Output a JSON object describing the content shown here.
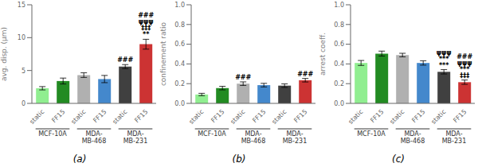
{
  "chart_data": [
    {
      "type": "bar",
      "title": "(a)",
      "ylabel": "avg. disp. (μm)",
      "categories": [
        "static",
        "FF15",
        "static",
        "FF15",
        "static",
        "FF15"
      ],
      "groups": [
        "MCF-10A",
        "MDA-\nMB-468",
        "MDA-\nMB-231"
      ],
      "values": [
        2.3,
        3.4,
        4.3,
        3.7,
        5.6,
        9.0
      ],
      "errors": [
        0.25,
        0.45,
        0.35,
        0.55,
        0.3,
        0.75
      ],
      "colors": [
        "#90ee90",
        "#228B22",
        "#b0b0b0",
        "#4488cc",
        "#404040",
        "#cc3333"
      ],
      "ylim": [
        0,
        15
      ],
      "yticks": [
        0,
        5,
        10,
        15
      ],
      "annotations": [
        {
          "bar": 4,
          "text": "###"
        },
        {
          "bar": 5,
          "text": "###\nψψψ\n‡‡‡\n**"
        }
      ]
    },
    {
      "type": "bar",
      "title": "(b)",
      "ylabel": "confinement ratio",
      "categories": [
        "static",
        "FF15",
        "static",
        "FF15",
        "static",
        "FF15"
      ],
      "groups": [
        "MCF-10A",
        "MDA-\nMB-468",
        "MDA-\nMB-231"
      ],
      "values": [
        0.09,
        0.155,
        0.2,
        0.185,
        0.18,
        0.235
      ],
      "errors": [
        0.012,
        0.018,
        0.018,
        0.018,
        0.018,
        0.018
      ],
      "colors": [
        "#90ee90",
        "#228B22",
        "#b0b0b0",
        "#4488cc",
        "#404040",
        "#cc3333"
      ],
      "ylim": [
        0,
        1.0
      ],
      "yticks": [
        {
          "value": 0,
          "label": "0.0"
        },
        0.2,
        0.4,
        0.6,
        0.8,
        {
          "value": 1.0,
          "label": "1.0"
        }
      ],
      "annotations": [
        {
          "bar": 2,
          "text": "###"
        },
        {
          "bar": 5,
          "text": "###"
        }
      ]
    },
    {
      "type": "bar",
      "title": "(c)",
      "ylabel": "arrest coeff.",
      "categories": [
        "static",
        "FF15",
        "static",
        "FF15",
        "static",
        "FF15"
      ],
      "groups": [
        "MCF-10A",
        "MDA-\nMB-468",
        "MDA-\nMB-231"
      ],
      "values": [
        0.41,
        0.505,
        0.49,
        0.41,
        0.32,
        0.215
      ],
      "errors": [
        0.025,
        0.025,
        0.018,
        0.022,
        0.022,
        0.022
      ],
      "colors": [
        "#90ee90",
        "#228B22",
        "#b0b0b0",
        "#4488cc",
        "#404040",
        "#cc3333"
      ],
      "ylim": [
        0,
        1.0
      ],
      "yticks": [
        {
          "value": 0,
          "label": "0.0"
        },
        0.2,
        0.4,
        0.6,
        0.8,
        {
          "value": 1.0,
          "label": "1.0"
        }
      ],
      "annotations": [
        {
          "bar": 4,
          "text": "ψψψ\n***\n***"
        },
        {
          "bar": 5,
          "text": "###\nψψψ\n***\n‡‡‡"
        }
      ]
    }
  ]
}
